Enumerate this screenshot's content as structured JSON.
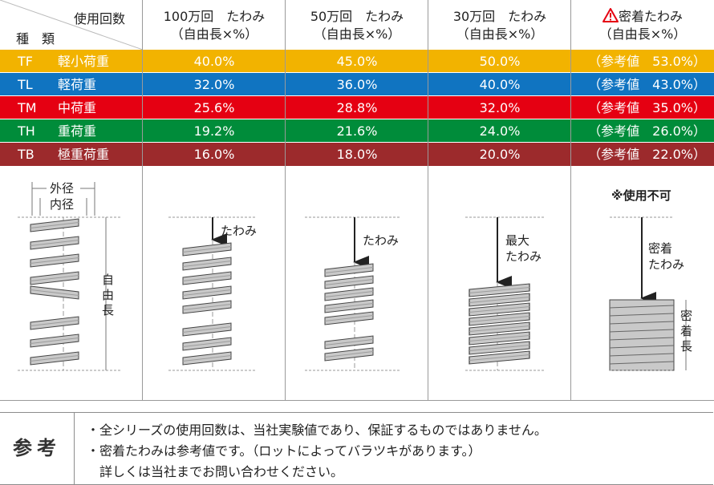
{
  "header": {
    "corner_top": "使用回数",
    "corner_bottom": "種　類",
    "columns": [
      {
        "title": "100万回　たわみ",
        "sub": "（自由長×%）"
      },
      {
        "title": "50万回　たわみ",
        "sub": "（自由長×%）"
      },
      {
        "title": "30万回　たわみ",
        "sub": "（自由長×%）"
      },
      {
        "title": "密着たわみ",
        "sub": "（自由長×%）",
        "warning_icon": "warning-triangle-icon"
      }
    ]
  },
  "rows": [
    {
      "code": "TF",
      "name": "軽小荷重",
      "v100": "40.0%",
      "v50": "45.0%",
      "v30": "50.0%",
      "closed": "（参考値　53.0%）",
      "color": "#f2b300"
    },
    {
      "code": "TL",
      "name": "軽荷重",
      "v100": "32.0%",
      "v50": "36.0%",
      "v30": "40.0%",
      "closed": "（参考値　43.0%）",
      "color": "#1074c1"
    },
    {
      "code": "TM",
      "name": "中荷重",
      "v100": "25.6%",
      "v50": "28.8%",
      "v30": "32.0%",
      "closed": "（参考値　35.0%）",
      "color": "#e50012"
    },
    {
      "code": "TH",
      "name": "重荷重",
      "v100": "19.2%",
      "v50": "21.6%",
      "v30": "24.0%",
      "closed": "（参考値　26.0%）",
      "color": "#008c3a"
    },
    {
      "code": "TB",
      "name": "極重荷重",
      "v100": "16.0%",
      "v50": "18.0%",
      "v30": "20.0%",
      "closed": "（参考値　22.0%）",
      "color": "#9c2a2c"
    }
  ],
  "diagrams": {
    "outer_diameter": "外径",
    "inner_diameter": "内径",
    "free_length": "自由長",
    "deflection": "たわみ",
    "max_label": "最大",
    "not_usable": "※使用不可",
    "closed_label": "密着",
    "closed_length": "密着長"
  },
  "reference": {
    "label": "参考",
    "notes": [
      "・全シリーズの使用回数は、当社実験値であり、保証するものではありません。",
      "・密着たわみは参考値です。（ロットによってバラツキがあります。）",
      "　詳しくは当社までお問い合わせください。"
    ]
  }
}
